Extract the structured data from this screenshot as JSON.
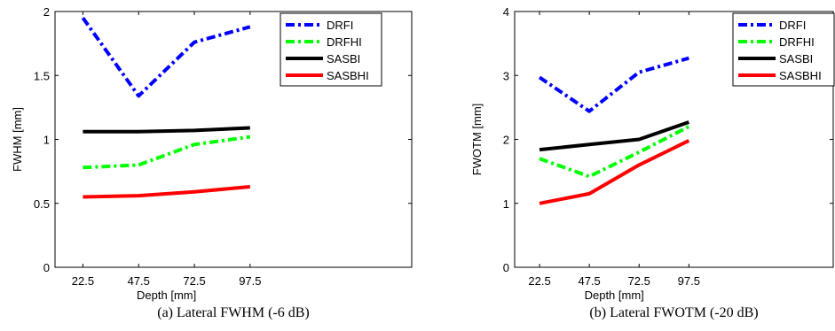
{
  "chart_data": [
    {
      "type": "line",
      "caption": "(a)  Lateral FWHM (-6 dB)",
      "xlabel": "Depth [mm]",
      "ylabel": "FWHM [mm]",
      "x": [
        22.5,
        47.5,
        72.5,
        97.5
      ],
      "xticks": [
        "22.5",
        "47.5",
        "72.5",
        "97.5"
      ],
      "ylim": [
        0,
        2
      ],
      "yticks": [
        "0",
        "0.5",
        "1",
        "1.5",
        "2"
      ],
      "yticks_values": [
        0,
        0.5,
        1,
        1.5,
        2
      ],
      "grid": false,
      "legend": "top-right",
      "series": [
        {
          "name": "DRFI",
          "values": [
            1.95,
            1.34,
            1.76,
            1.88
          ],
          "color": "#0000ff",
          "style": "dashdot"
        },
        {
          "name": "DRFHI",
          "values": [
            0.78,
            0.8,
            0.96,
            1.02
          ],
          "color": "#00ff00",
          "style": "dashdot"
        },
        {
          "name": "SASBI",
          "values": [
            1.06,
            1.06,
            1.07,
            1.09
          ],
          "color": "#000000",
          "style": "solid"
        },
        {
          "name": "SASBHI",
          "values": [
            0.55,
            0.56,
            0.59,
            0.63
          ],
          "color": "#ff0000",
          "style": "solid"
        }
      ]
    },
    {
      "type": "line",
      "caption": "(b)  Lateral FWOTM (-20 dB)",
      "xlabel": "Depth [mm]",
      "ylabel": "FWOTM [mm]",
      "x": [
        22.5,
        47.5,
        72.5,
        97.5
      ],
      "xticks": [
        "22.5",
        "47.5",
        "72.5",
        "97.5"
      ],
      "ylim": [
        0,
        4
      ],
      "yticks": [
        "0",
        "1",
        "2",
        "3",
        "4"
      ],
      "yticks_values": [
        0,
        1,
        2,
        3,
        4
      ],
      "grid": false,
      "legend": "top-right",
      "series": [
        {
          "name": "DRFI",
          "values": [
            2.97,
            2.44,
            3.05,
            3.27
          ],
          "color": "#0000ff",
          "style": "dashdot"
        },
        {
          "name": "DRFHI",
          "values": [
            1.7,
            1.42,
            1.8,
            2.2
          ],
          "color": "#00ff00",
          "style": "dashdot"
        },
        {
          "name": "SASBI",
          "values": [
            1.84,
            1.92,
            2.0,
            2.27
          ],
          "color": "#000000",
          "style": "solid"
        },
        {
          "name": "SASBHI",
          "values": [
            1.0,
            1.15,
            1.6,
            1.98
          ],
          "color": "#ff0000",
          "style": "solid"
        }
      ]
    }
  ]
}
